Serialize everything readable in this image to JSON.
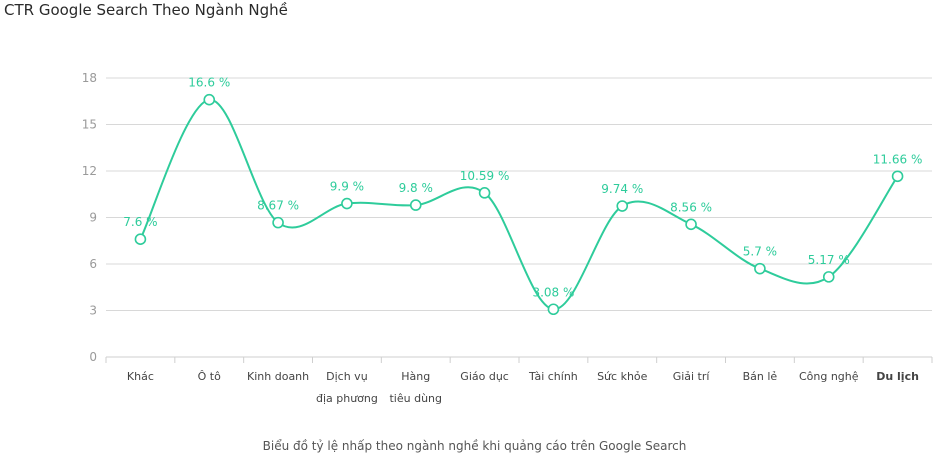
{
  "header": {
    "title": "CTR Google Search Theo Ngành Nghề"
  },
  "footer": {
    "caption": "Biểu đồ tỷ lệ nhấp theo ngành nghề khi quảng cáo trên Google Search"
  },
  "colors": {
    "line": "#2ecc9b",
    "grid": "#d8d8d8",
    "axis": "#cfcfcf"
  },
  "chart_data": {
    "type": "line",
    "title": "CTR Google Search Theo Ngành Nghề",
    "xlabel": "",
    "ylabel": "",
    "ylim": [
      0,
      18
    ],
    "yticks": [
      0,
      3,
      6,
      9,
      12,
      15,
      18
    ],
    "grid": true,
    "legend": "none",
    "categories": [
      [
        "Khác"
      ],
      [
        "Ô tô"
      ],
      [
        "Kinh doanh"
      ],
      [
        "Dịch vụ",
        "địa phương"
      ],
      [
        "Hàng",
        "tiêu dùng"
      ],
      [
        "Giáo dục"
      ],
      [
        "Tài chính"
      ],
      [
        "Sức khỏe"
      ],
      [
        "Giải trí"
      ],
      [
        "Bán lẻ"
      ],
      [
        "Công nghệ"
      ],
      [
        "Du lịch"
      ]
    ],
    "highlight_category": 11,
    "series": [
      {
        "values": [
          7.6,
          16.6,
          8.67,
          9.9,
          9.8,
          10.59,
          3.08,
          9.74,
          8.56,
          5.7,
          5.17,
          11.66
        ],
        "labels": [
          "7.6 %",
          "16.6 %",
          "8.67 %",
          "9.9 %",
          "9.8 %",
          "10.59 %",
          "3.08 %",
          "9.74 %",
          "8.56 %",
          "5.7 %",
          "5.17 %",
          "11.66 %"
        ]
      }
    ]
  }
}
